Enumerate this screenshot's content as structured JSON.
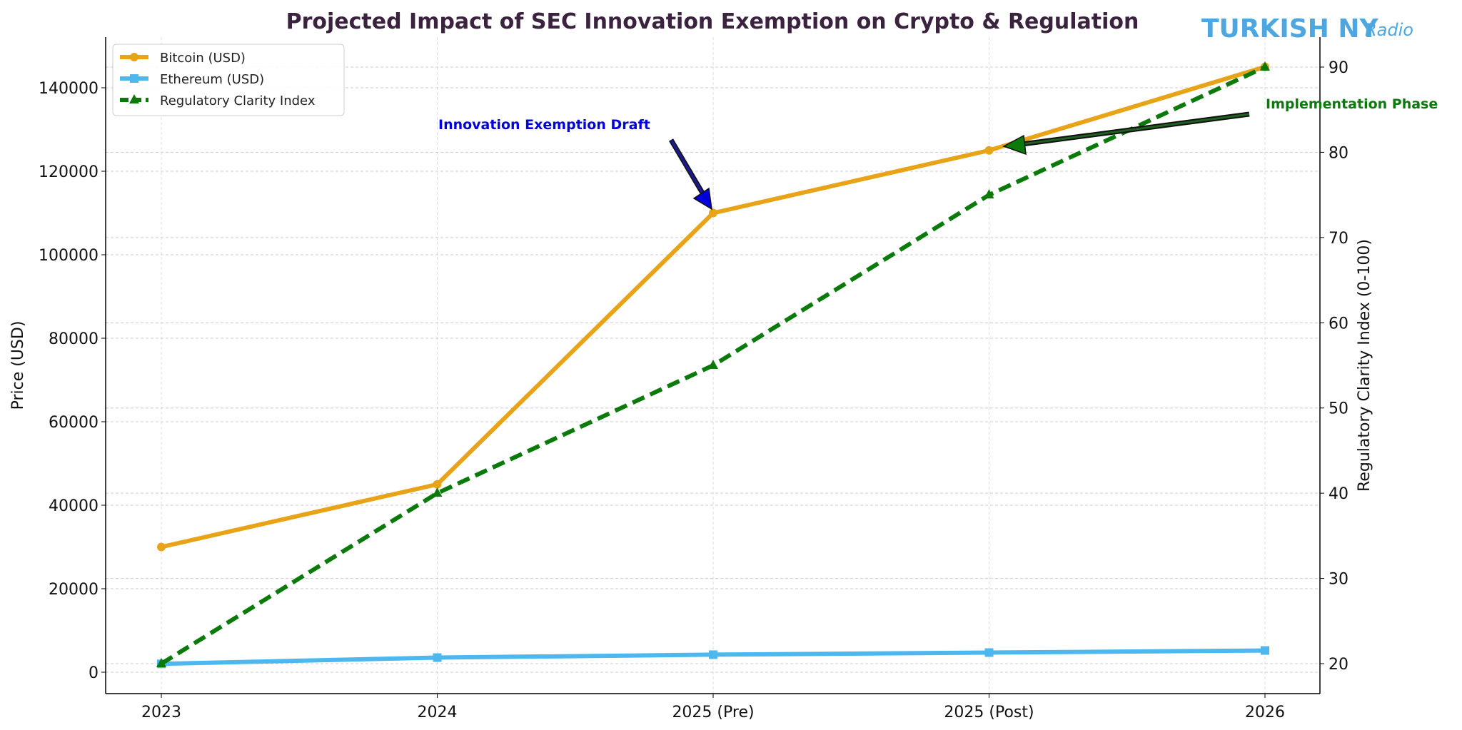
{
  "chart_data": {
    "type": "line",
    "title": "Projected Impact of SEC Innovation Exemption on Crypto & Regulation",
    "watermark": "TURKISH NY Radio",
    "categories": [
      "2023",
      "2024",
      "2025 (Pre)",
      "2025 (Post)",
      "2026"
    ],
    "xlabel": "",
    "ylabel": "Price (USD)",
    "ylabel_right": "Regulatory Clarity Index (0-100)",
    "ylim": [
      -5000,
      152000
    ],
    "ylim_right": [
      16.5,
      93.5
    ],
    "yticks": [
      0,
      20000,
      40000,
      60000,
      80000,
      100000,
      120000,
      140000
    ],
    "yticks_right": [
      20,
      30,
      40,
      50,
      60,
      70,
      80,
      90
    ],
    "grid": true,
    "legend_placement": "top-left",
    "series": [
      {
        "name": "Bitcoin (USD)",
        "axis": "left",
        "color": "#E8A317",
        "marker": "circle",
        "style": "solid",
        "values": [
          30000,
          45000,
          110000,
          125000,
          145000
        ]
      },
      {
        "name": "Ethereum (USD)",
        "axis": "left",
        "color": "#4DB8EE",
        "marker": "square",
        "style": "solid",
        "values": [
          2000,
          3500,
          4200,
          4700,
          5200
        ]
      },
      {
        "name": "Regulatory Clarity Index",
        "axis": "right",
        "color": "#0A7A0A",
        "marker": "triangle",
        "style": "dashed",
        "values": [
          20,
          40,
          55,
          75,
          90
        ]
      }
    ],
    "annotations": [
      {
        "text": "Innovation Exemption Draft",
        "color": "#0000DD",
        "target_category": "2025 (Pre)",
        "target_series": "Bitcoin (USD)"
      },
      {
        "text": "Implementation Phase",
        "color": "#0A7A0A",
        "target_category": "2025 (Post)",
        "target_series": "Bitcoin (USD)"
      }
    ]
  }
}
